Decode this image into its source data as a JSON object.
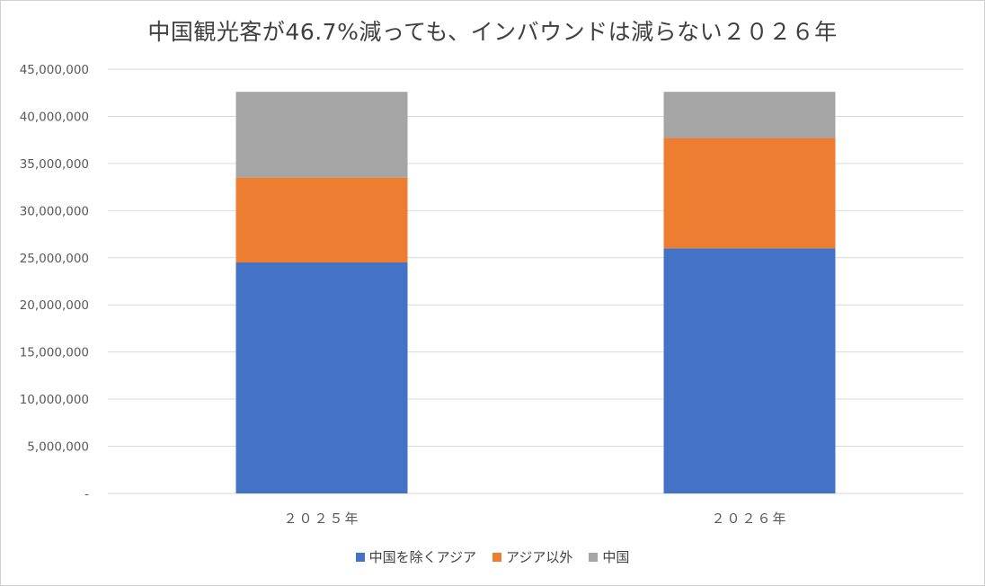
{
  "chart_data": {
    "type": "bar",
    "stacked": true,
    "title": "中国観光客が46.7%減っても、インバウンドは減らない２０２６年",
    "categories": [
      "２０２５年",
      "２０２６年"
    ],
    "series": [
      {
        "name": "中国を除くアジア",
        "color": "#4472c4",
        "values": [
          24500000,
          26000000
        ]
      },
      {
        "name": "アジア以外",
        "color": "#ed7d31",
        "values": [
          9000000,
          11700000
        ]
      },
      {
        "name": "中国",
        "color": "#a5a5a5",
        "values": [
          9100000,
          4900000
        ]
      }
    ],
    "ylim": [
      0,
      45000000
    ],
    "yticks": [
      "-",
      "5,000,000",
      "10,000,000",
      "15,000,000",
      "20,000,000",
      "25,000,000",
      "30,000,000",
      "35,000,000",
      "40,000,000",
      "45,000,000"
    ],
    "grid": true,
    "legend": "bottom"
  }
}
